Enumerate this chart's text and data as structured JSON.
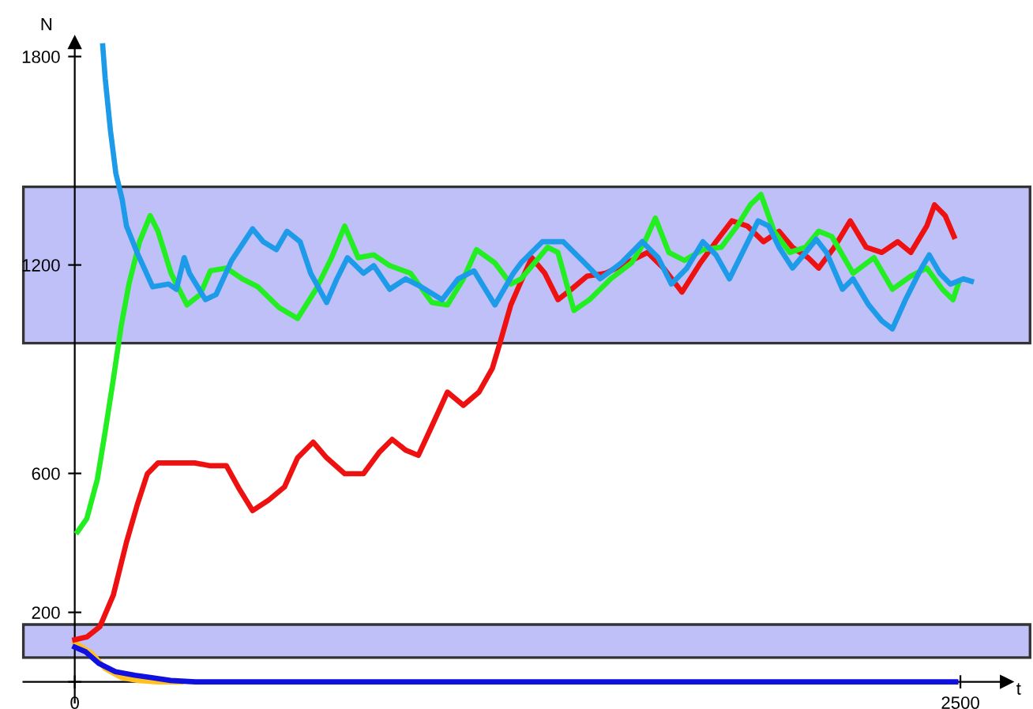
{
  "chart_data": {
    "type": "line",
    "xlabel": "t",
    "ylabel": "N",
    "xlim": [
      -145,
      2630
    ],
    "ylim": [
      -60,
      1840
    ],
    "xticks": [
      0,
      2500
    ],
    "yticks": [
      {
        "value": 0,
        "label": null
      },
      200,
      600,
      1200,
      1800
    ],
    "marker": "none",
    "line_style": "solid",
    "bands": [
      {
        "axis": "y",
        "from": 975,
        "to": 1425,
        "color": "#c0c0f8"
      },
      {
        "axis": "y",
        "from": 70,
        "to": 165,
        "color": "#c0c0f8"
      }
    ],
    "series": [
      {
        "color": "#ffc020",
        "x": [
          0,
          48,
          86,
          133,
          179,
          235,
          300
        ],
        "values": [
          114,
          82,
          38,
          12,
          4,
          0,
          0
        ]
      },
      {
        "color": "#ee1111",
        "x": [
          0,
          34,
          71,
          109,
          146,
          176,
          205,
          235,
          280,
          339,
          383,
          428,
          465,
          502,
          547,
          592,
          629,
          673,
          711,
          762,
          815,
          859,
          896,
          934,
          970,
          1008,
          1052,
          1097,
          1141,
          1179,
          1201,
          1231,
          1260,
          1290,
          1327,
          1364,
          1402,
          1446,
          1498,
          1558,
          1617,
          1662,
          1714,
          1766,
          1810,
          1855,
          1899,
          1944,
          1988,
          2026,
          2070,
          2100,
          2144,
          2189,
          2234,
          2278,
          2323,
          2360,
          2405,
          2427,
          2457,
          2482
        ],
        "values": [
          121,
          129,
          159,
          250,
          402,
          508,
          599,
          630,
          630,
          630,
          622,
          622,
          554,
          493,
          523,
          561,
          645,
          690,
          645,
          599,
          599,
          660,
          698,
          667,
          652,
          736,
          834,
          796,
          834,
          903,
          978,
          1085,
          1153,
          1221,
          1176,
          1100,
          1130,
          1168,
          1176,
          1206,
          1236,
          1191,
          1122,
          1206,
          1267,
          1327,
          1312,
          1267,
          1297,
          1251,
          1221,
          1191,
          1251,
          1327,
          1251,
          1236,
          1267,
          1236,
          1312,
          1373,
          1342,
          1282
        ]
      },
      {
        "color": "#22ee22",
        "x": [
          8,
          34,
          64,
          86,
          109,
          131,
          153,
          183,
          213,
          235,
          272,
          317,
          354,
          383,
          428,
          473,
          517,
          577,
          629,
          681,
          725,
          762,
          800,
          844,
          889,
          948,
          1008,
          1052,
          1097,
          1134,
          1186,
          1231,
          1260,
          1335,
          1364,
          1409,
          1453,
          1513,
          1572,
          1609,
          1639,
          1677,
          1721,
          1773,
          1825,
          1870,
          1907,
          1937,
          1974,
          2018,
          2063,
          2100,
          2137,
          2197,
          2256,
          2308,
          2360,
          2405,
          2449,
          2479,
          2494
        ],
        "values": [
          432,
          470,
          584,
          721,
          872,
          1024,
          1145,
          1267,
          1342,
          1297,
          1176,
          1085,
          1115,
          1183,
          1191,
          1160,
          1137,
          1077,
          1046,
          1130,
          1221,
          1312,
          1221,
          1229,
          1198,
          1176,
          1092,
          1085,
          1160,
          1244,
          1206,
          1145,
          1160,
          1251,
          1236,
          1069,
          1100,
          1160,
          1206,
          1267,
          1335,
          1236,
          1213,
          1244,
          1251,
          1312,
          1373,
          1403,
          1297,
          1236,
          1251,
          1297,
          1282,
          1176,
          1221,
          1130,
          1168,
          1191,
          1130,
          1100,
          1145
        ]
      },
      {
        "color": "#1e9be8",
        "x": [
          79,
          86,
          101,
          116,
          134,
          146,
          176,
          220,
          265,
          287,
          309,
          324,
          369,
          399,
          443,
          502,
          532,
          569,
          599,
          636,
          666,
          711,
          740,
          770,
          815,
          844,
          889,
          934,
          978,
          1037,
          1082,
          1127,
          1186,
          1238,
          1260,
          1320,
          1379,
          1439,
          1483,
          1543,
          1602,
          1647,
          1684,
          1728,
          1773,
          1810,
          1848,
          1885,
          1929,
          1959,
          1988,
          2026,
          2063,
          2093,
          2122,
          2167,
          2197,
          2241,
          2278,
          2308,
          2345,
          2390,
          2412,
          2442,
          2472,
          2509,
          2531
        ],
        "values": [
          1831,
          1737,
          1585,
          1464,
          1388,
          1312,
          1236,
          1137,
          1145,
          1130,
          1221,
          1176,
          1100,
          1115,
          1213,
          1304,
          1267,
          1244,
          1297,
          1267,
          1176,
          1092,
          1160,
          1221,
          1176,
          1198,
          1130,
          1160,
          1137,
          1100,
          1160,
          1183,
          1085,
          1176,
          1206,
          1267,
          1267,
          1206,
          1160,
          1206,
          1267,
          1221,
          1145,
          1191,
          1267,
          1229,
          1160,
          1236,
          1327,
          1312,
          1251,
          1191,
          1236,
          1274,
          1236,
          1130,
          1160,
          1085,
          1039,
          1016,
          1100,
          1191,
          1229,
          1176,
          1145,
          1160,
          1153
        ]
      },
      {
        "color": "#1010e0",
        "x": [
          0,
          30,
          68,
          115,
          170,
          217,
          271,
          340,
          2487
        ],
        "values": [
          100,
          87,
          53,
          29,
          19,
          12,
          4,
          0,
          0
        ]
      }
    ]
  }
}
